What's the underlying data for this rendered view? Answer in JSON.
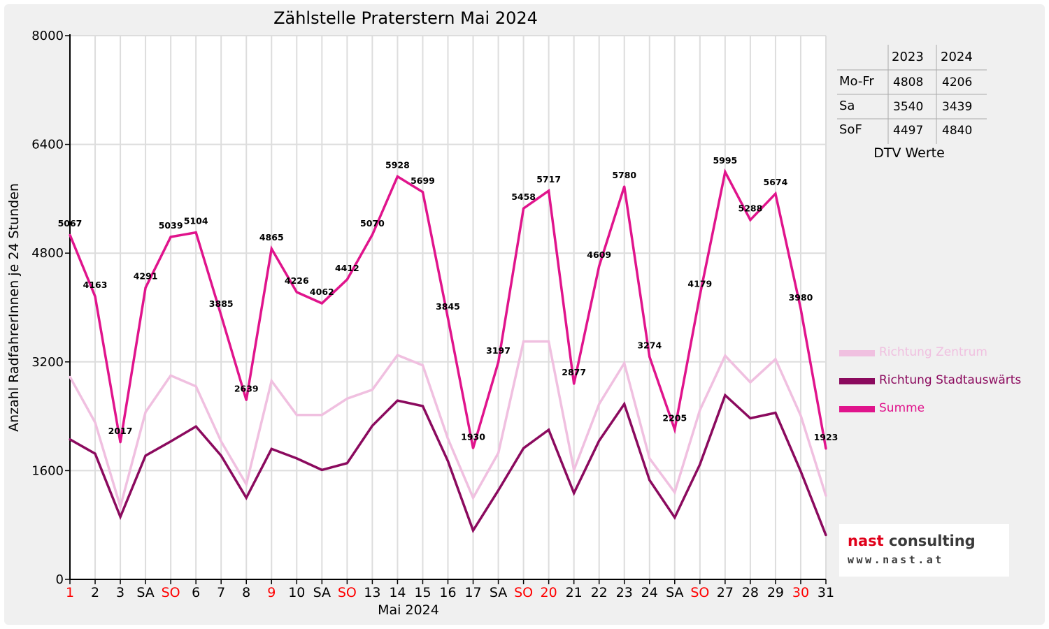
{
  "chart_data": {
    "type": "line",
    "title": "Zählstelle Praterstern Mai 2024",
    "xlabel": "Mai 2024",
    "ylabel": "Anzahl RadfahrerInnen je 24 Stunden",
    "ylim": [
      0,
      8000
    ],
    "y_ticks": [
      0,
      1600,
      3200,
      4800,
      6400,
      8000
    ],
    "categories": [
      "1",
      "2",
      "3",
      "SA",
      "SO",
      "6",
      "7",
      "8",
      "9",
      "10",
      "SA",
      "SO",
      "13",
      "14",
      "15",
      "16",
      "17",
      "SA",
      "SO",
      "20",
      "21",
      "22",
      "23",
      "24",
      "SA",
      "SO",
      "27",
      "28",
      "29",
      "30",
      "31"
    ],
    "highlighted_categories": [
      0,
      4,
      8,
      11,
      18,
      19,
      25,
      29
    ],
    "grid": true,
    "legend_position": "right",
    "series": [
      {
        "name": "Richtung Zentrum",
        "color": "#f0c0e0",
        "values": [
          2980,
          2310,
          1070,
          2460,
          3000,
          2840,
          2030,
          1400,
          2920,
          2420,
          2420,
          2660,
          2790,
          3300,
          3150,
          2070,
          1200,
          1860,
          3500,
          3500,
          1610,
          2580,
          3180,
          1780,
          1280,
          2490,
          3290,
          2900,
          3240,
          2410,
          1230
        ]
      },
      {
        "name": "Richtung Stadtauswärts",
        "color": "#8b0a5e",
        "values": [
          2060,
          1850,
          920,
          1820,
          2030,
          2250,
          1820,
          1200,
          1920,
          1780,
          1610,
          1710,
          2260,
          2630,
          2550,
          1740,
          720,
          1310,
          1930,
          2200,
          1270,
          2040,
          2580,
          1460,
          910,
          1690,
          2710,
          2370,
          2450,
          1590,
          650
        ]
      },
      {
        "name": "Summe",
        "color": "#e0148c",
        "show_labels": true,
        "values": [
          5067,
          4163,
          2017,
          4291,
          5039,
          5104,
          3885,
          2639,
          4865,
          4226,
          4062,
          4412,
          5070,
          5928,
          5699,
          3845,
          1930,
          3197,
          5458,
          5717,
          2877,
          4609,
          5780,
          3274,
          2205,
          4179,
          5995,
          5288,
          5674,
          3980,
          1923
        ]
      }
    ]
  },
  "dtv_table": {
    "headers": [
      "",
      "2023",
      "2024"
    ],
    "rows": [
      {
        "label": "Mo-Fr",
        "y2023": "4808",
        "y2024": "4206"
      },
      {
        "label": "Sa",
        "y2023": "3540",
        "y2024": "3439"
      },
      {
        "label": "SoF",
        "y2023": "4497",
        "y2024": "4840"
      }
    ],
    "caption": "DTV Werte"
  },
  "logo": {
    "brand_primary": "nast",
    "brand_secondary": "consulting",
    "url": "www.nast.at"
  },
  "colors": {
    "background": "#f0f0f0",
    "plot_background": "#ffffff",
    "holiday_tick": "#ff0000",
    "grid": "#dddddd"
  }
}
